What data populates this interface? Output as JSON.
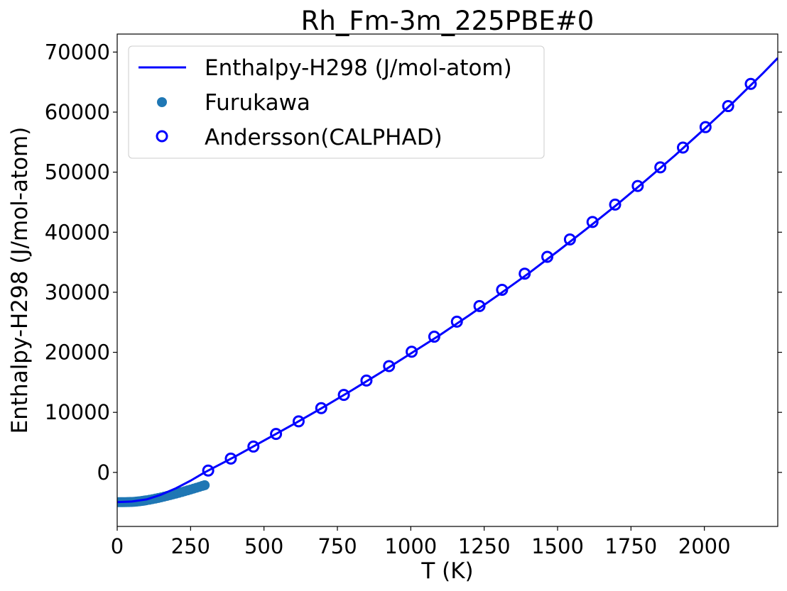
{
  "chart_data": {
    "type": "line",
    "title": "Rh_Fm-3m_225PBE#0",
    "xlabel": "T (K)",
    "ylabel": "Enthalpy-H298 (J/mol-atom)",
    "xlim": [
      0,
      2250
    ],
    "ylim": [
      -9000,
      73000
    ],
    "xticks": [
      0,
      250,
      500,
      750,
      1000,
      1250,
      1500,
      1750,
      2000
    ],
    "yticks": [
      0,
      10000,
      20000,
      30000,
      40000,
      50000,
      60000,
      70000
    ],
    "grid": false,
    "legend_position": "upper-left",
    "colors": {
      "line": "#0000ff",
      "furukawa": "#1f77b4",
      "andersson": "#0000ff"
    },
    "series": [
      {
        "name": "Enthalpy-H298 (J/mol-atom)",
        "kind": "line",
        "x": [
          0,
          50,
          100,
          150,
          200,
          250,
          298,
          400,
          500,
          600,
          700,
          800,
          900,
          1000,
          1100,
          1200,
          1300,
          1400,
          1500,
          1600,
          1700,
          1800,
          1900,
          2000,
          2100,
          2200,
          2250
        ],
        "y": [
          -4950,
          -4850,
          -4500,
          -3700,
          -2650,
          -1380,
          0,
          2600,
          5300,
          8000,
          10800,
          13700,
          16700,
          19800,
          22900,
          26200,
          29600,
          33100,
          36800,
          40600,
          44500,
          48600,
          52800,
          57200,
          61700,
          66500,
          69000
        ]
      },
      {
        "name": "Furukawa",
        "kind": "scatter-filled",
        "x": [
          5,
          10,
          15,
          20,
          25,
          30,
          35,
          40,
          45,
          50,
          55,
          60,
          65,
          70,
          75,
          80,
          85,
          90,
          95,
          100,
          110,
          120,
          130,
          140,
          150,
          160,
          170,
          180,
          190,
          200,
          210,
          220,
          230,
          240,
          250,
          260,
          270,
          280,
          290,
          298
        ],
        "y": [
          -4955,
          -4955,
          -4954,
          -4953,
          -4951,
          -4948,
          -4944,
          -4938,
          -4930,
          -4920,
          -4905,
          -4888,
          -4866,
          -4842,
          -4815,
          -4785,
          -4752,
          -4717,
          -4679,
          -4639,
          -4555,
          -4463,
          -4364,
          -4259,
          -4149,
          -4034,
          -3915,
          -3792,
          -3666,
          -3537,
          -3405,
          -3270,
          -3133,
          -2993,
          -2850,
          -2705,
          -2557,
          -2407,
          -2255,
          -2131
        ]
      },
      {
        "name": "Andersson(CALPHAD)",
        "kind": "scatter-open",
        "x": [
          310,
          387,
          464,
          541,
          618,
          695,
          772,
          849,
          926,
          1003,
          1080,
          1157,
          1234,
          1311,
          1388,
          1465,
          1542,
          1619,
          1696,
          1773,
          1850,
          1927,
          2004,
          2081,
          2158
        ],
        "y": [
          300,
          2300,
          4300,
          6400,
          8500,
          10700,
          12900,
          15300,
          17700,
          20100,
          22600,
          25100,
          27700,
          30400,
          33100,
          35900,
          38800,
          41700,
          44600,
          47700,
          50800,
          54100,
          57500,
          61000,
          64700
        ]
      }
    ]
  }
}
